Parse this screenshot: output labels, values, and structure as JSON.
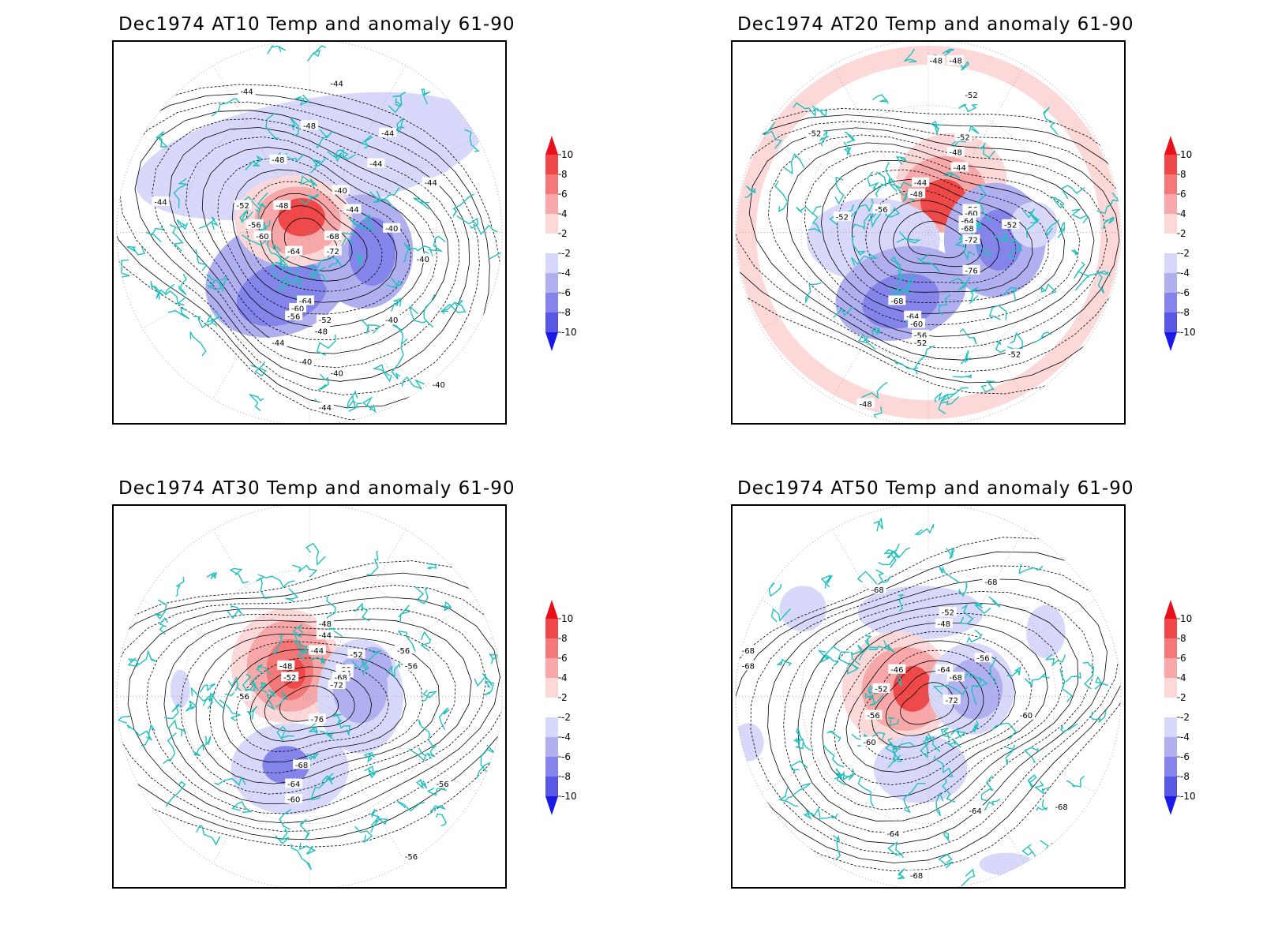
{
  "panels": [
    {
      "title": "Dec1974 AT10 Temp and anomaly 61-90",
      "level": "AT10",
      "contour_labels": [
        "-44",
        "-44",
        "-48",
        "-44",
        "-48",
        "-44",
        "-44",
        "-44",
        "-40",
        "-44",
        "-52",
        "-48",
        "-56",
        "-60",
        "-64",
        "-68",
        "-72",
        "-64",
        "-60",
        "-56",
        "-52",
        "-48",
        "-40",
        "-40",
        "-40",
        "-44",
        "-40",
        "-40",
        "-40",
        "-44"
      ]
    },
    {
      "title": "Dec1974 AT20 Temp and anomaly 61-90",
      "level": "AT20",
      "contour_labels": [
        "-48",
        "-48",
        "-52",
        "-52",
        "-52",
        "-48",
        "-44",
        "-44",
        "-48",
        "-52",
        "-56",
        "-56",
        "-60",
        "-64",
        "-68",
        "-72",
        "-76",
        "-68",
        "-64",
        "-60",
        "-56",
        "-52",
        "-52",
        "-52",
        "-48"
      ]
    },
    {
      "title": "Dec1974 AT30 Temp and anomaly 61-90",
      "level": "AT30",
      "contour_labels": [
        "-48",
        "-44",
        "-44",
        "-48",
        "-52",
        "-56",
        "-52",
        "-56",
        "-60",
        "-64",
        "-68",
        "-72",
        "-76",
        "-68",
        "-64",
        "-60",
        "-56",
        "-56",
        "-56"
      ]
    },
    {
      "title": "Dec1974 AT50 Temp and anomaly 61-90",
      "level": "AT50",
      "contour_labels": [
        "-68",
        "-68",
        "-52",
        "-48",
        "-68",
        "-68",
        "-56",
        "-46",
        "-64",
        "-68",
        "-52",
        "-72",
        "-56",
        "-60",
        "-60",
        "-64",
        "-64",
        "-68",
        "-68"
      ]
    }
  ],
  "colorbar": {
    "ticks": [
      "10",
      "8",
      "6",
      "4",
      "2",
      "-2",
      "-4",
      "-6",
      "-8",
      "-10"
    ],
    "colors": [
      "#e8101a",
      "#f04848",
      "#f47878",
      "#f8a8a8",
      "#fcd8d8",
      "#ffffff",
      "#d8d8fa",
      "#b0b0f0",
      "#8484ea",
      "#5858e4",
      "#1a1ae8"
    ]
  },
  "styles": {
    "coastline": "#20c0c0",
    "contour": "#000000",
    "grid": "#999999"
  }
}
